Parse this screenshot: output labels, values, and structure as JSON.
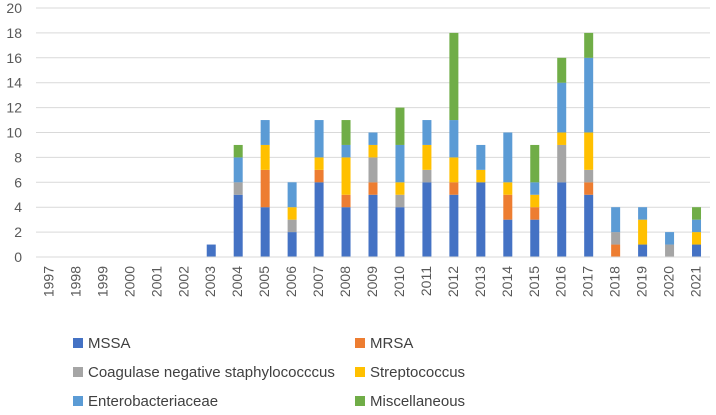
{
  "chart_data": {
    "type": "bar",
    "stacked": true,
    "title": "",
    "xlabel": "",
    "ylabel": "",
    "ylim": [
      0,
      20
    ],
    "yticks": [
      0,
      2,
      4,
      6,
      8,
      10,
      12,
      14,
      16,
      18,
      20
    ],
    "grid": true,
    "legend_position": "bottom",
    "categories": [
      "1997",
      "1998",
      "1999",
      "2000",
      "2001",
      "2002",
      "2003",
      "2004",
      "2005",
      "2006",
      "2007",
      "2008",
      "2009",
      "2010",
      "2011",
      "2012",
      "2013",
      "2014",
      "2015",
      "2016",
      "2017",
      "2018",
      "2019",
      "2020",
      "2021"
    ],
    "series": [
      {
        "name": "MSSA",
        "color": "#4472C4",
        "values": [
          0,
          0,
          0,
          0,
          0,
          0,
          1,
          5,
          4,
          2,
          6,
          4,
          5,
          4,
          6,
          5,
          6,
          3,
          3,
          6,
          5,
          0,
          1,
          0,
          1
        ]
      },
      {
        "name": "MRSA",
        "color": "#ED7D31",
        "values": [
          0,
          0,
          0,
          0,
          0,
          0,
          0,
          0,
          3,
          0,
          1,
          1,
          1,
          0,
          0,
          1,
          0,
          2,
          1,
          0,
          1,
          1,
          0,
          0,
          0
        ]
      },
      {
        "name": "Coagulase negative staphylococccus",
        "color": "#A5A5A5",
        "values": [
          0,
          0,
          0,
          0,
          0,
          0,
          0,
          1,
          0,
          1,
          0,
          0,
          2,
          1,
          1,
          0,
          0,
          0,
          0,
          3,
          1,
          1,
          0,
          1,
          0
        ]
      },
      {
        "name": "Streptococcus",
        "color": "#FFC000",
        "values": [
          0,
          0,
          0,
          0,
          0,
          0,
          0,
          0,
          2,
          1,
          1,
          3,
          1,
          1,
          2,
          2,
          1,
          1,
          1,
          1,
          3,
          0,
          2,
          0,
          1
        ]
      },
      {
        "name": "Enterobacteriaceae",
        "color": "#5B9BD5",
        "values": [
          0,
          0,
          0,
          0,
          0,
          0,
          0,
          2,
          2,
          2,
          3,
          1,
          1,
          3,
          2,
          3,
          2,
          4,
          1,
          4,
          6,
          2,
          1,
          1,
          1
        ]
      },
      {
        "name": "Miscellaneous",
        "color": "#70AD47",
        "values": [
          0,
          0,
          0,
          0,
          0,
          0,
          0,
          1,
          0,
          0,
          0,
          2,
          0,
          3,
          0,
          7,
          0,
          0,
          3,
          2,
          2,
          0,
          0,
          0,
          1
        ]
      }
    ]
  }
}
